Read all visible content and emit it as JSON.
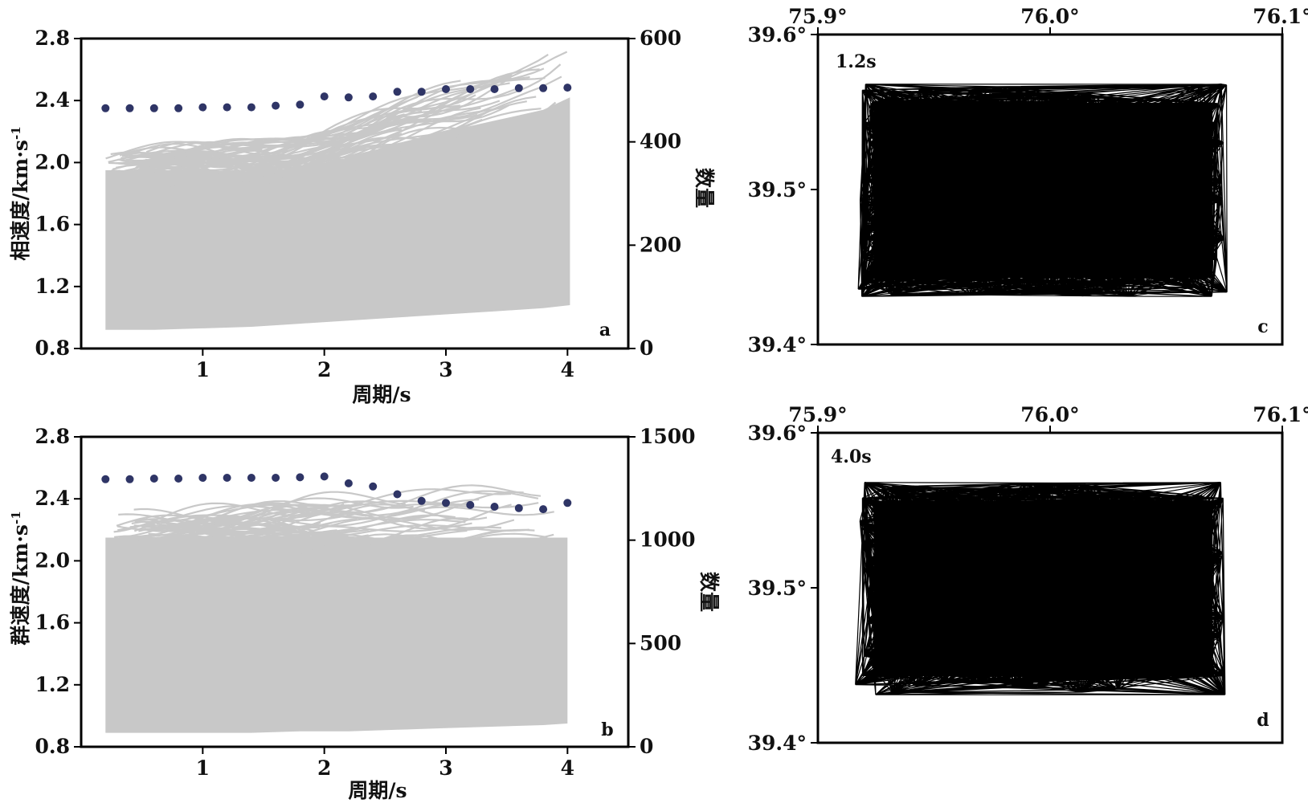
{
  "colors": {
    "curves": "#c8c8c8",
    "dots": "#2f3566",
    "ink": "#000000"
  },
  "chart_data": [
    {
      "id": "a",
      "type": "line",
      "panel_label": "a",
      "xlabel": "周期/s",
      "ylabel": "相速度/km·s",
      "ylabel_sup": "-1",
      "y2label": "数量",
      "xlim": [
        0.0,
        4.5
      ],
      "ylim": [
        0.8,
        2.8
      ],
      "y2lim": [
        0,
        600
      ],
      "xticks": [
        "1",
        "2",
        "3",
        "4"
      ],
      "yticks": [
        "0.8",
        "1.2",
        "1.6",
        "2.0",
        "2.4",
        "2.8"
      ],
      "y2ticks": [
        "0",
        "200",
        "400",
        "600"
      ],
      "dispersion_envelope": {
        "x": [
          0.2,
          0.6,
          1.0,
          1.4,
          1.8,
          2.2,
          2.6,
          3.0,
          3.4,
          3.8,
          4.02
        ],
        "lower": [
          0.92,
          0.92,
          0.93,
          0.94,
          0.96,
          0.98,
          1.0,
          1.02,
          1.04,
          1.06,
          1.08
        ],
        "upper": [
          1.95,
          1.95,
          1.95,
          1.94,
          1.97,
          2.03,
          2.12,
          2.2,
          2.27,
          2.34,
          2.42
        ]
      },
      "count_points": {
        "x": [
          0.2,
          0.4,
          0.6,
          0.8,
          1.0,
          1.2,
          1.4,
          1.6,
          1.8,
          2.0,
          2.2,
          2.4,
          2.6,
          2.8,
          3.0,
          3.2,
          3.4,
          3.6,
          3.8,
          4.0
        ],
        "values": [
          465,
          465,
          465,
          465,
          467,
          467,
          467,
          470,
          472,
          488,
          486,
          488,
          497,
          497,
          502,
          502,
          502,
          504,
          504,
          505
        ]
      }
    },
    {
      "id": "b",
      "type": "line",
      "panel_label": "b",
      "xlabel": "周期/s",
      "ylabel": "群速度/km·s",
      "ylabel_sup": "-1",
      "y2label": "数量",
      "xlim": [
        0.0,
        4.5
      ],
      "ylim": [
        0.8,
        2.8
      ],
      "y2lim": [
        0,
        1500
      ],
      "xticks": [
        "1",
        "2",
        "3",
        "4"
      ],
      "yticks": [
        "0.8",
        "1.2",
        "1.6",
        "2.0",
        "2.4",
        "2.8"
      ],
      "y2ticks": [
        "0",
        "500",
        "1000",
        "1500"
      ],
      "dispersion_envelope": {
        "x": [
          0.2,
          0.6,
          1.0,
          1.4,
          1.8,
          2.2,
          2.6,
          3.0,
          3.4,
          3.8,
          4.0
        ],
        "lower": [
          0.89,
          0.89,
          0.89,
          0.89,
          0.9,
          0.9,
          0.91,
          0.92,
          0.93,
          0.94,
          0.95
        ],
        "upper": [
          2.15,
          2.15,
          2.15,
          2.15,
          2.15,
          2.15,
          2.15,
          2.15,
          2.15,
          2.15,
          2.15
        ]
      },
      "count_points": {
        "x": [
          0.2,
          0.4,
          0.6,
          0.8,
          1.0,
          1.2,
          1.4,
          1.6,
          1.8,
          2.0,
          2.2,
          2.4,
          2.6,
          2.8,
          3.0,
          3.2,
          3.4,
          3.6,
          3.8,
          4.0
        ],
        "values": [
          1295,
          1295,
          1298,
          1298,
          1302,
          1302,
          1302,
          1302,
          1304,
          1308,
          1275,
          1260,
          1222,
          1190,
          1180,
          1170,
          1162,
          1155,
          1150,
          1180
        ]
      }
    },
    {
      "id": "c",
      "type": "scatter",
      "panel_label": "c",
      "annotation": "1.2s",
      "xlim": [
        75.9,
        76.1
      ],
      "ylim": [
        39.4,
        39.6
      ],
      "xticks": [
        "75.9°",
        "76.0°",
        "76.1°"
      ],
      "yticks": [
        "39.4°",
        "39.5°",
        "39.6°"
      ],
      "ray_region": {
        "lon": [
          75.918,
          76.076
        ],
        "lat": [
          39.431,
          39.568
        ]
      }
    },
    {
      "id": "d",
      "type": "scatter",
      "panel_label": "d",
      "annotation": "4.0s",
      "xlim": [
        75.9,
        76.1
      ],
      "ylim": [
        39.4,
        39.6
      ],
      "xticks": [
        "75.9°",
        "76.0°",
        "76.1°"
      ],
      "yticks": [
        "39.4°",
        "39.5°",
        "39.6°"
      ],
      "ray_region": {
        "lon": [
          75.918,
          76.076
        ],
        "lat": [
          39.431,
          39.568
        ]
      }
    }
  ]
}
